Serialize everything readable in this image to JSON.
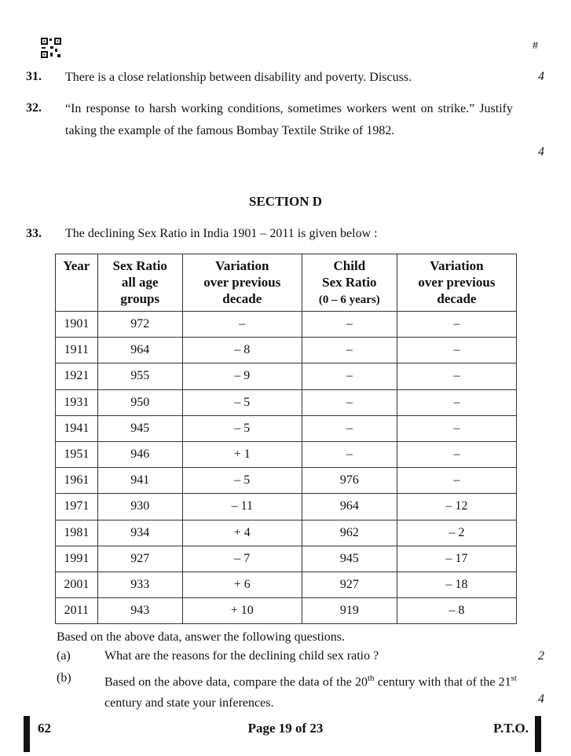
{
  "header": {
    "mark": "#"
  },
  "questions": [
    {
      "number": "31.",
      "text": "There is a close relationship between disability and poverty. Discuss.",
      "marks": "4"
    },
    {
      "number": "32.",
      "text": "“In response to harsh working conditions, sometimes workers went on strike.” Justify taking the example of the famous Bombay Textile Strike of 1982.",
      "marks": "4"
    }
  ],
  "section": {
    "title": "SECTION D"
  },
  "question33": {
    "number": "33.",
    "text": "The declining Sex Ratio in India 1901 – 2011 is given below :",
    "table": {
      "header": [
        [
          "Year"
        ],
        [
          "Sex Ratio",
          "all age",
          "groups"
        ],
        [
          "Variation",
          "over previous",
          "decade"
        ],
        [
          "Child",
          "Sex Ratio",
          "(0 – 6 years)"
        ],
        [
          "Variation",
          "over previous",
          "decade"
        ]
      ],
      "rows": [
        [
          "1901",
          "972",
          "–",
          "–",
          "–"
        ],
        [
          "1911",
          "964",
          "– 8",
          "–",
          "–"
        ],
        [
          "1921",
          "955",
          "– 9",
          "–",
          "–"
        ],
        [
          "1931",
          "950",
          "– 5",
          "–",
          "–"
        ],
        [
          "1941",
          "945",
          "– 5",
          "–",
          "–"
        ],
        [
          "1951",
          "946",
          "+ 1",
          "–",
          "–"
        ],
        [
          "1961",
          "941",
          "– 5",
          "976",
          "–"
        ],
        [
          "1971",
          "930",
          "– 11",
          "964",
          "– 12"
        ],
        [
          "1981",
          "934",
          "+ 4",
          "962",
          "– 2"
        ],
        [
          "1991",
          "927",
          "– 7",
          "945",
          "– 17"
        ],
        [
          "2001",
          "933",
          "+ 6",
          "927",
          "– 18"
        ],
        [
          "2011",
          "943",
          "+ 10",
          "919",
          "– 8"
        ]
      ]
    },
    "intro": "Based on the above data, answer the following questions.",
    "parts": [
      {
        "label": "(a)",
        "text": [
          "What are the reasons for the declining child sex ratio ?"
        ],
        "marks": "2"
      },
      {
        "label": "(b)",
        "text": [
          "Based on the above data, compare the data of the 20",
          "th",
          " century with that of the 21",
          "st",
          " century and state your inferences."
        ],
        "marks": "4"
      }
    ]
  },
  "footer": {
    "code": "62",
    "page": "Page 19 of 23",
    "pto": "P.T.O."
  }
}
